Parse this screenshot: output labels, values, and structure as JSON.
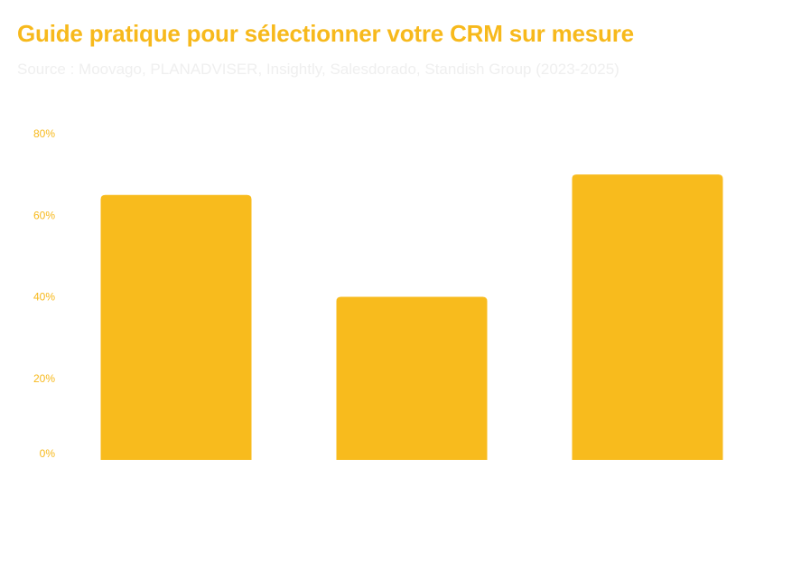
{
  "chart_data": {
    "type": "bar",
    "title": "Guide pratique pour sélectionner votre CRM sur mesure",
    "subtitle": "Source : Moovago, PLANADVISER, Insightly, Salesdorado, Standish Group (2023-2025)",
    "categories": [
      "",
      "",
      ""
    ],
    "values": [
      65,
      40,
      70
    ],
    "ylim": [
      0,
      80
    ],
    "yticks": [
      0,
      20,
      40,
      60,
      80
    ],
    "ytick_labels": [
      "0%",
      "20%",
      "40%",
      "60%",
      "80%"
    ],
    "xlabel": "",
    "ylabel": "",
    "grid": false,
    "legend": "none",
    "colors": {
      "bar": "#f8bb1d",
      "title": "#f7b91c",
      "subtitle": "#efefef",
      "tick": "#f7b91c"
    }
  }
}
